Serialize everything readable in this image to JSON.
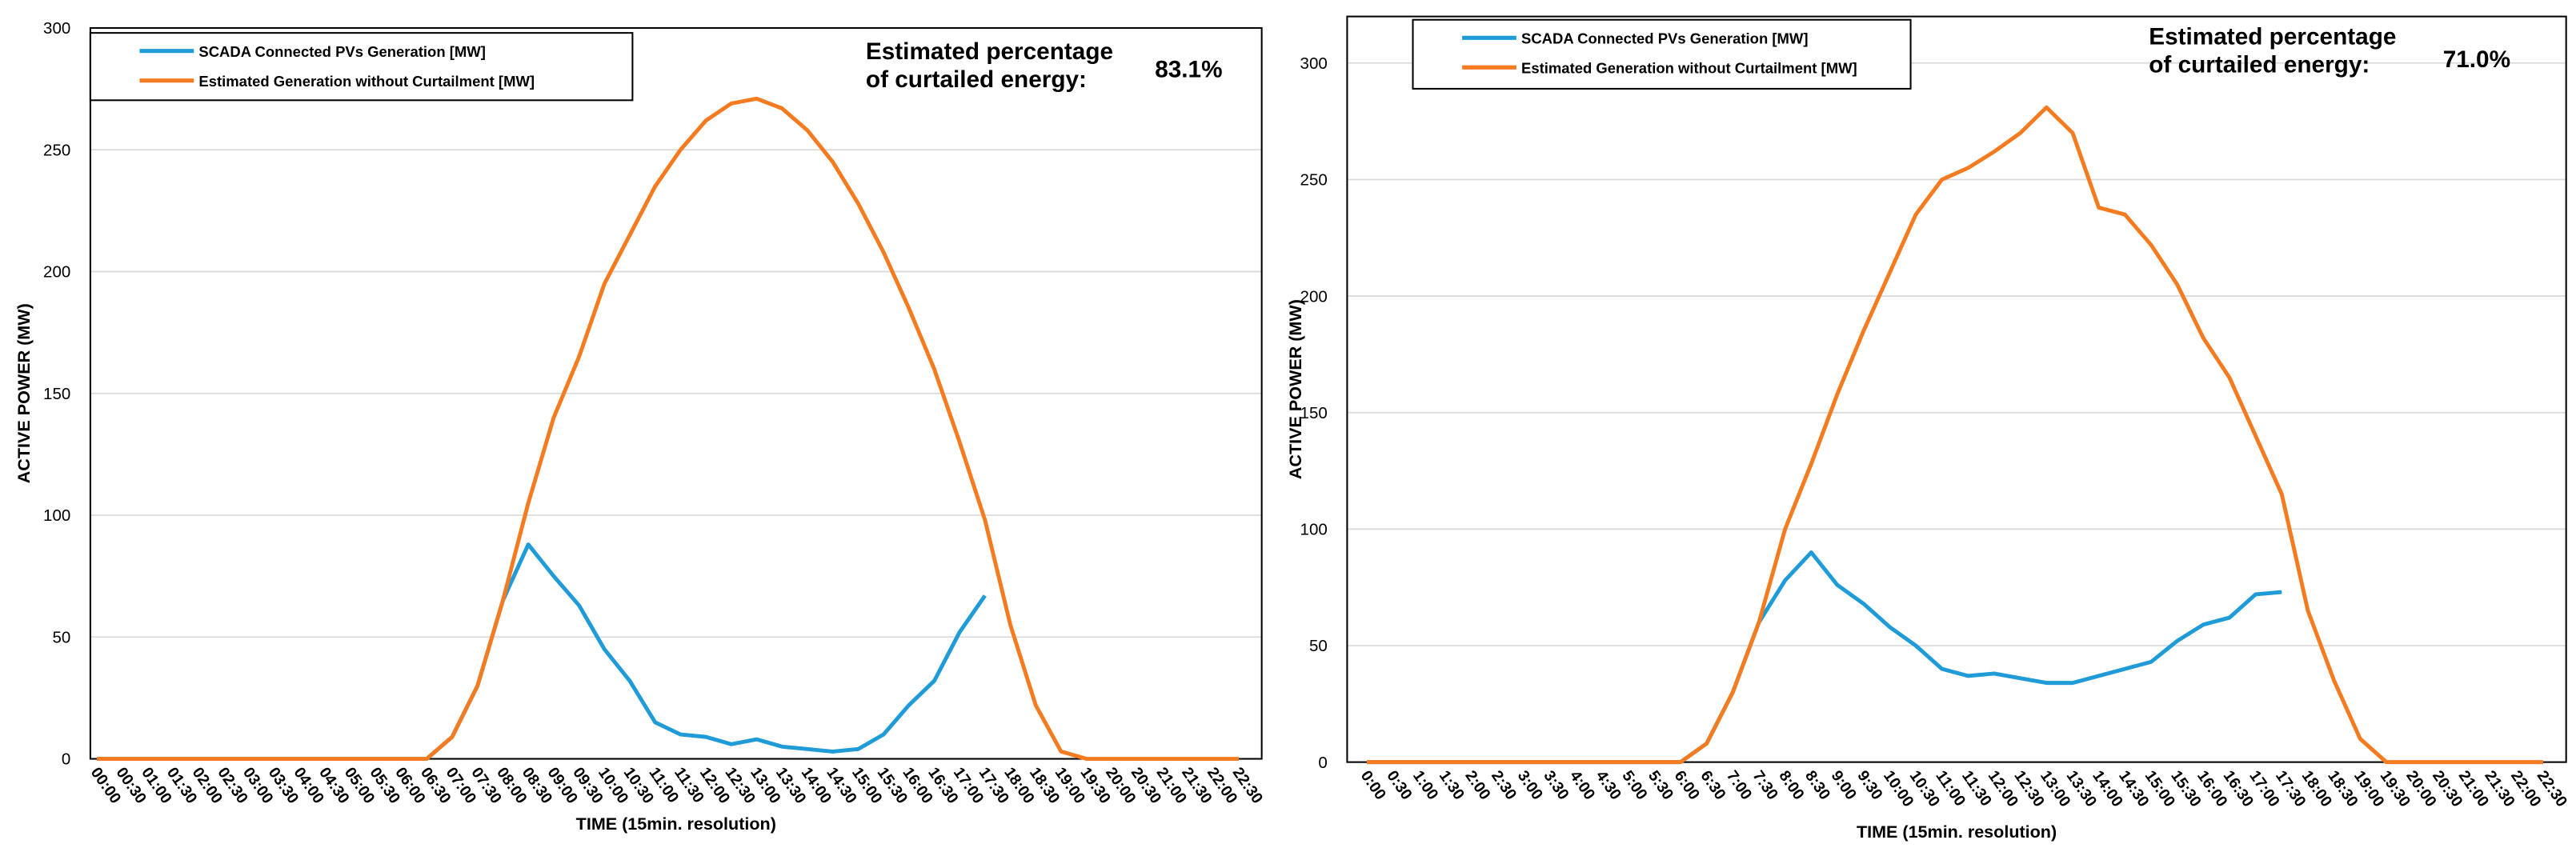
{
  "chart_data": [
    {
      "type": "line",
      "x_label": "TIME (15min. resolution)",
      "y_label": "ACTIVE POWER (MW)",
      "annotation_lines": [
        "Estimated percentage",
        "of curtailed energy:"
      ],
      "annotation_value": "83.1%",
      "categories": [
        "00:00",
        "00:30",
        "01:00",
        "01:30",
        "02:00",
        "02:30",
        "03:00",
        "03:30",
        "04:00",
        "04:30",
        "05:00",
        "05:30",
        "06:00",
        "06:30",
        "07:00",
        "07:30",
        "08:00",
        "08:30",
        "09:00",
        "09:30",
        "10:00",
        "10:30",
        "11:00",
        "11:30",
        "12:00",
        "12:30",
        "13:00",
        "13:30",
        "14:00",
        "14:30",
        "15:00",
        "15:30",
        "16:00",
        "16:30",
        "17:00",
        "17:30",
        "18:00",
        "18:30",
        "19:00",
        "19:30",
        "20:00",
        "20:30",
        "21:00",
        "21:30",
        "22:00",
        "22:30"
      ],
      "ylim": [
        0,
        300
      ],
      "yticks": [
        0,
        50,
        100,
        150,
        200,
        250,
        300
      ],
      "grid": true,
      "series": [
        {
          "name": "SCADA Connected PVs Generation [MW]",
          "color": "#1f9bd7",
          "values": [
            0,
            0,
            0,
            0,
            0,
            0,
            0,
            0,
            0,
            0,
            0,
            0,
            0,
            0,
            9,
            30,
            65,
            88,
            75,
            63,
            45,
            32,
            15,
            10,
            9,
            6,
            8,
            5,
            4,
            3,
            4,
            10,
            22,
            32,
            52,
            67,
            null,
            null,
            null,
            null,
            null,
            null,
            null,
            null,
            null,
            null
          ]
        },
        {
          "name": "Estimated Generation without Curtailment [MW]",
          "color": "#f47b20",
          "values": [
            0,
            0,
            0,
            0,
            0,
            0,
            0,
            0,
            0,
            0,
            0,
            0,
            0,
            0,
            9,
            30,
            65,
            105,
            140,
            165,
            195,
            215,
            235,
            250,
            262,
            269,
            271,
            267,
            258,
            245,
            228,
            208,
            185,
            160,
            130,
            98,
            55,
            22,
            3,
            0,
            0,
            0,
            0,
            0,
            0,
            0
          ]
        }
      ]
    },
    {
      "type": "line",
      "x_label": "TIME (15min. resolution)",
      "y_label": "ACTIVE POWER (MW)",
      "annotation_lines": [
        "Estimated percentage",
        "of curtailed energy:"
      ],
      "annotation_value": "71.0%",
      "categories": [
        "0:00",
        "0:30",
        "1:00",
        "1:30",
        "2:00",
        "2:30",
        "3:00",
        "3:30",
        "4:00",
        "4:30",
        "5:00",
        "5:30",
        "6:00",
        "6:30",
        "7:00",
        "7:30",
        "8:00",
        "8:30",
        "9:00",
        "9:30",
        "10:00",
        "10:30",
        "11:00",
        "11:30",
        "12:00",
        "12:30",
        "13:00",
        "13:30",
        "14:00",
        "14:30",
        "15:00",
        "15:30",
        "16:00",
        "16:30",
        "17:00",
        "17:30",
        "18:00",
        "18:30",
        "19:00",
        "19:30",
        "20:00",
        "20:30",
        "21:00",
        "21:30",
        "22:00",
        "22:30"
      ],
      "ylim": [
        0,
        320
      ],
      "yticks": [
        0,
        50,
        100,
        150,
        200,
        250,
        300
      ],
      "grid": true,
      "series": [
        {
          "name": "SCADA Connected PVs Generation [MW]",
          "color": "#1f9bd7",
          "values": [
            0,
            0,
            0,
            0,
            0,
            0,
            0,
            0,
            0,
            0,
            0,
            0,
            0,
            8,
            30,
            60,
            78,
            90,
            76,
            68,
            58,
            50,
            40,
            37,
            38,
            36,
            34,
            34,
            37,
            40,
            43,
            52,
            59,
            62,
            72,
            73,
            null,
            null,
            null,
            null,
            null,
            null,
            null,
            null,
            null,
            null
          ]
        },
        {
          "name": "Estimated Generation without Curtailment [MW]",
          "color": "#f47b20",
          "values": [
            0,
            0,
            0,
            0,
            0,
            0,
            0,
            0,
            0,
            0,
            0,
            0,
            0,
            8,
            30,
            60,
            100,
            128,
            158,
            185,
            210,
            235,
            250,
            255,
            262,
            270,
            281,
            270,
            238,
            235,
            222,
            205,
            182,
            165,
            140,
            115,
            65,
            35,
            10,
            0,
            0,
            0,
            0,
            0,
            0,
            0
          ]
        }
      ]
    }
  ]
}
